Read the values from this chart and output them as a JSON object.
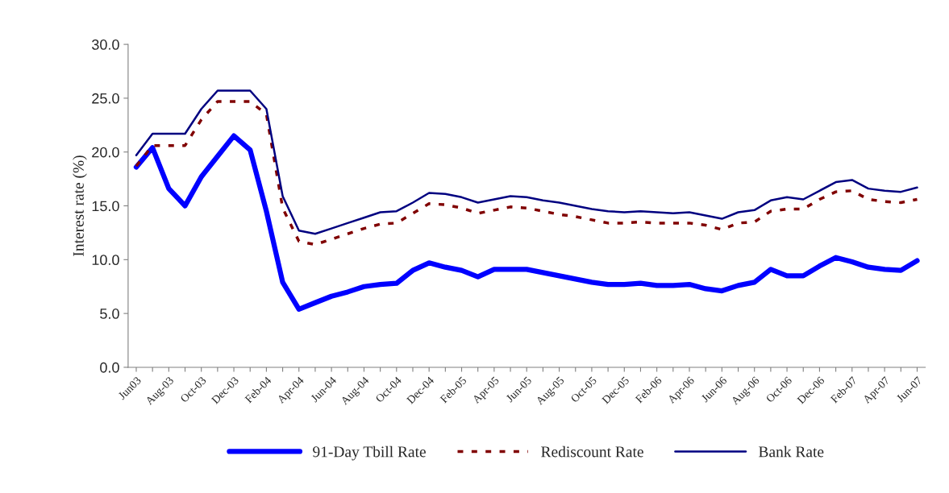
{
  "chart_data": {
    "type": "line",
    "ylabel": "Interest rate (%)",
    "categories": [
      "Jun03",
      null,
      "Aug-03",
      null,
      "Oct-03",
      null,
      "Dec-03",
      null,
      "Feb-04",
      null,
      "Apr-04",
      null,
      "Jun-04",
      null,
      "Aug-04",
      null,
      "Oct-04",
      null,
      "Dec-04",
      null,
      "Feb-05",
      null,
      "Apr-05",
      null,
      "Jun-05",
      null,
      "Aug-05",
      null,
      "Oct-05",
      null,
      "Dec-05",
      null,
      "Feb-06",
      null,
      "Apr-06",
      null,
      "Jun-06",
      null,
      "Aug-06",
      null,
      "Oct-06",
      null,
      "Dec-06",
      null,
      "Feb-07",
      null,
      "Apr-07",
      null,
      "Jun-07"
    ],
    "ylim": [
      0,
      30
    ],
    "yticks": [
      {
        "value": 0,
        "label": "0.0"
      },
      {
        "value": 5,
        "label": "5.0"
      },
      {
        "value": 10,
        "label": "10.0"
      },
      {
        "value": 15,
        "label": "15.0"
      },
      {
        "value": 20,
        "label": "20.0"
      },
      {
        "value": 25,
        "label": "25.0"
      },
      {
        "value": 30,
        "label": "30.0"
      }
    ],
    "grid": false,
    "legend": "bottom",
    "marker": "none",
    "series": [
      {
        "name": "91-Day Tbill Rate",
        "color": "#0000ff",
        "line_style": "solid",
        "values": [
          18.6,
          20.4,
          16.6,
          15.0,
          17.7,
          19.6,
          21.5,
          20.2,
          14.5,
          7.9,
          5.4,
          6.0,
          6.6,
          7.0,
          7.5,
          7.7,
          7.8,
          9.0,
          9.7,
          9.3,
          9.0,
          8.4,
          9.1,
          9.1,
          9.1,
          8.8,
          8.5,
          8.2,
          7.9,
          7.7,
          7.7,
          7.8,
          7.6,
          7.6,
          7.7,
          7.3,
          7.1,
          7.6,
          7.9,
          9.1,
          8.5,
          8.5,
          9.4,
          10.2,
          9.8,
          9.3,
          9.1,
          9.0,
          9.9
        ]
      },
      {
        "name": "Rediscount Rate",
        "color": "#800000",
        "line_style": "dotted",
        "values": [
          18.7,
          20.6,
          20.6,
          20.6,
          23.0,
          24.7,
          24.7,
          24.7,
          23.5,
          14.8,
          11.7,
          11.4,
          11.9,
          12.4,
          12.9,
          13.3,
          13.4,
          14.3,
          15.2,
          15.1,
          14.8,
          14.3,
          14.6,
          14.9,
          14.8,
          14.5,
          14.2,
          14.0,
          13.7,
          13.4,
          13.4,
          13.5,
          13.4,
          13.4,
          13.4,
          13.2,
          12.8,
          13.4,
          13.5,
          14.5,
          14.7,
          14.7,
          15.6,
          16.3,
          16.4,
          15.6,
          15.4,
          15.3,
          15.6
        ]
      },
      {
        "name": "Bank Rate",
        "color": "#000080",
        "line_style": "solid",
        "values": [
          19.7,
          21.7,
          21.7,
          21.7,
          24.0,
          25.7,
          25.7,
          25.7,
          24.0,
          15.9,
          12.7,
          12.4,
          12.9,
          13.4,
          13.9,
          14.4,
          14.5,
          15.3,
          16.2,
          16.1,
          15.8,
          15.3,
          15.6,
          15.9,
          15.8,
          15.5,
          15.3,
          15.0,
          14.7,
          14.5,
          14.4,
          14.5,
          14.4,
          14.3,
          14.4,
          14.1,
          13.8,
          14.4,
          14.6,
          15.5,
          15.8,
          15.6,
          16.4,
          17.2,
          17.4,
          16.6,
          16.4,
          16.3,
          16.7
        ]
      }
    ]
  }
}
